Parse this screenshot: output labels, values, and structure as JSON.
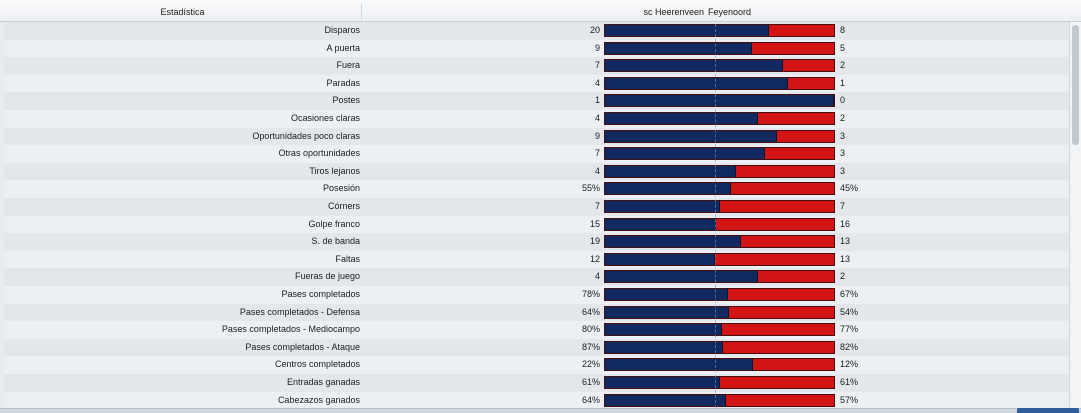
{
  "header": {
    "stat_col": "Estadística",
    "home_team": "sc Heerenveen",
    "away_team": "Feyenoord"
  },
  "colors": {
    "home": "#102a60",
    "away": "#d31414"
  },
  "rows": [
    {
      "label": "Disparos",
      "home": "20",
      "away": "8",
      "home_share": 0.714
    },
    {
      "label": "A puerta",
      "home": "9",
      "away": "5",
      "home_share": 0.643
    },
    {
      "label": "Fuera",
      "home": "7",
      "away": "2",
      "home_share": 0.778
    },
    {
      "label": "Paradas",
      "home": "4",
      "away": "1",
      "home_share": 0.8
    },
    {
      "label": "Postes",
      "home": "1",
      "away": "0",
      "home_share": 1.0
    },
    {
      "label": "Ocasiones claras",
      "home": "4",
      "away": "2",
      "home_share": 0.667
    },
    {
      "label": "Oportunidades poco claras",
      "home": "9",
      "away": "3",
      "home_share": 0.75
    },
    {
      "label": "Otras oportunidades",
      "home": "7",
      "away": "3",
      "home_share": 0.7
    },
    {
      "label": "Tiros lejanos",
      "home": "4",
      "away": "3",
      "home_share": 0.571
    },
    {
      "label": "Posesión",
      "home": "55%",
      "away": "45%",
      "home_share": 0.55
    },
    {
      "label": "Córners",
      "home": "7",
      "away": "7",
      "home_share": 0.5
    },
    {
      "label": "Golpe franco",
      "home": "15",
      "away": "16",
      "home_share": 0.484
    },
    {
      "label": "S. de banda",
      "home": "19",
      "away": "13",
      "home_share": 0.594
    },
    {
      "label": "Faltas",
      "home": "12",
      "away": "13",
      "home_share": 0.48
    },
    {
      "label": "Fueras de juego",
      "home": "4",
      "away": "2",
      "home_share": 0.667
    },
    {
      "label": "Pases completados",
      "home": "78%",
      "away": "67%",
      "home_share": 0.538
    },
    {
      "label": "Pases completados - Defensa",
      "home": "64%",
      "away": "54%",
      "home_share": 0.542
    },
    {
      "label": "Pases completados - Mediocampo",
      "home": "80%",
      "away": "77%",
      "home_share": 0.51
    },
    {
      "label": "Pases completados - Ataque",
      "home": "87%",
      "away": "82%",
      "home_share": 0.515
    },
    {
      "label": "Centros completados",
      "home": "22%",
      "away": "12%",
      "home_share": 0.647
    },
    {
      "label": "Entradas ganadas",
      "home": "61%",
      "away": "61%",
      "home_share": 0.5
    },
    {
      "label": "Cabezazos ganados",
      "home": "64%",
      "away": "57%",
      "home_share": 0.529
    }
  ]
}
